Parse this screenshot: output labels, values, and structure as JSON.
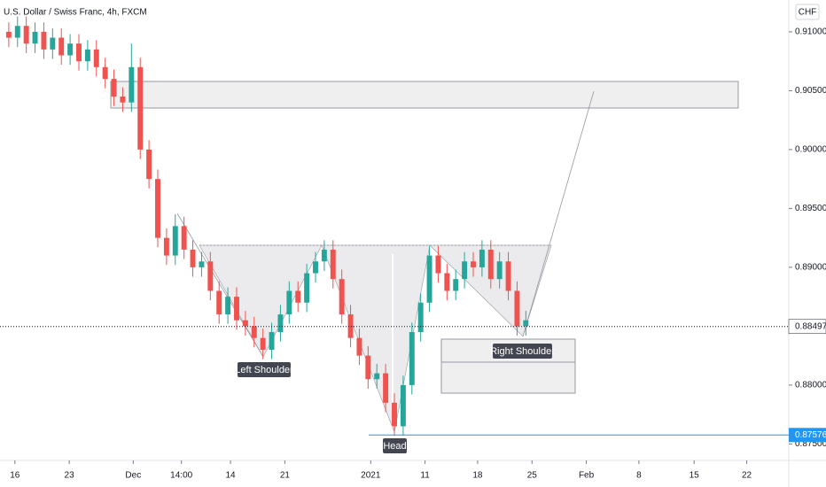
{
  "chart_data": {
    "type": "candlestick",
    "title": "U.S. Dollar / Swiss Franc, 4h, FXCM",
    "currency": "CHF",
    "up_color": "#26a69a",
    "down_color": "#ef5350",
    "xlim": [
      0,
      90
    ],
    "ylim": [
      0.8736,
      0.9127
    ],
    "xticks": [
      {
        "value": 1.7,
        "label": "16"
      },
      {
        "value": 7.9,
        "label": "23"
      },
      {
        "value": 15.2,
        "label": "Dec"
      },
      {
        "value": 20.7,
        "label": "14:00"
      },
      {
        "value": 26.3,
        "label": "14"
      },
      {
        "value": 32.5,
        "label": "21"
      },
      {
        "value": 42.3,
        "label": "2021"
      },
      {
        "value": 48.5,
        "label": "11"
      },
      {
        "value": 54.5,
        "label": "18"
      },
      {
        "value": 60.7,
        "label": "25"
      },
      {
        "value": 66.9,
        "label": "Feb"
      },
      {
        "value": 72.9,
        "label": "8"
      },
      {
        "value": 79.2,
        "label": "15"
      },
      {
        "value": 85.2,
        "label": "22"
      }
    ],
    "yticks": [
      {
        "value": 0.91,
        "label": "0.91000"
      },
      {
        "value": 0.905,
        "label": "0.90500"
      },
      {
        "value": 0.9,
        "label": "0.90000"
      },
      {
        "value": 0.895,
        "label": "0.89500"
      },
      {
        "value": 0.89,
        "label": "0.89000"
      },
      {
        "value": 0.88,
        "label": "0.88000"
      },
      {
        "value": 0.875,
        "label": "0.87500"
      }
    ],
    "price_lines": [
      {
        "value": 0.88497,
        "color": "#131722",
        "style": "dotted"
      },
      {
        "value": 0.87576,
        "color": "#2196f3",
        "style": "solid"
      }
    ],
    "annotations": [
      "Left Shoulder",
      "Head",
      "Right Shoulder"
    ],
    "x": [
      1,
      2,
      3,
      4,
      5,
      6,
      7,
      8,
      9,
      10,
      11,
      12,
      13,
      14,
      15,
      16,
      17,
      18,
      19,
      20,
      21,
      22,
      23,
      24,
      25,
      26,
      27,
      28,
      29,
      30,
      31,
      32,
      33,
      34,
      35,
      36,
      37,
      38,
      39,
      40,
      41,
      42,
      43,
      44,
      45,
      46,
      47,
      48,
      49,
      50,
      51,
      52,
      53,
      54,
      55,
      56,
      57,
      58,
      59,
      60
    ],
    "open": [
      0.91,
      0.9095,
      0.9105,
      0.909,
      0.91,
      0.9085,
      0.9095,
      0.908,
      0.909,
      0.9075,
      0.9085,
      0.907,
      0.906,
      0.9045,
      0.904,
      0.907,
      0.9,
      0.8975,
      0.8925,
      0.891,
      0.8935,
      0.8915,
      0.89,
      0.8905,
      0.888,
      0.886,
      0.8875,
      0.8855,
      0.885,
      0.884,
      0.883,
      0.8845,
      0.886,
      0.888,
      0.887,
      0.8895,
      0.8905,
      0.8915,
      0.889,
      0.886,
      0.884,
      0.8825,
      0.8805,
      0.881,
      0.8785,
      0.8765,
      0.88,
      0.8845,
      0.887,
      0.891,
      0.8895,
      0.888,
      0.889,
      0.8905,
      0.89,
      0.8915,
      0.889,
      0.8905,
      0.888,
      0.885
    ],
    "high": [
      0.9108,
      0.9113,
      0.9113,
      0.9108,
      0.9108,
      0.9103,
      0.9103,
      0.9098,
      0.9098,
      0.9093,
      0.9093,
      0.9078,
      0.9068,
      0.9053,
      0.909,
      0.9078,
      0.9008,
      0.8983,
      0.8933,
      0.8945,
      0.8943,
      0.8923,
      0.8913,
      0.8913,
      0.8888,
      0.8883,
      0.8883,
      0.8863,
      0.8858,
      0.8848,
      0.8853,
      0.8868,
      0.8888,
      0.8888,
      0.8903,
      0.8913,
      0.8923,
      0.8923,
      0.8898,
      0.8868,
      0.8848,
      0.8833,
      0.8818,
      0.8818,
      0.8793,
      0.8808,
      0.8853,
      0.8878,
      0.8918,
      0.8918,
      0.8903,
      0.8898,
      0.8913,
      0.8913,
      0.8923,
      0.8923,
      0.8913,
      0.8913,
      0.8888,
      0.8863
    ],
    "low": [
      0.9087,
      0.9087,
      0.9082,
      0.9082,
      0.9077,
      0.9077,
      0.9072,
      0.9072,
      0.9067,
      0.9067,
      0.9062,
      0.9052,
      0.9037,
      0.9032,
      0.9032,
      0.8992,
      0.8967,
      0.8917,
      0.8902,
      0.8902,
      0.8907,
      0.8892,
      0.8892,
      0.8872,
      0.8852,
      0.8852,
      0.8847,
      0.8842,
      0.8832,
      0.8822,
      0.8822,
      0.8837,
      0.8852,
      0.8862,
      0.8862,
      0.8887,
      0.8897,
      0.8882,
      0.8852,
      0.8832,
      0.8817,
      0.8797,
      0.8797,
      0.8777,
      0.8757,
      0.8757,
      0.8792,
      0.8837,
      0.8862,
      0.8887,
      0.8872,
      0.8872,
      0.8882,
      0.8892,
      0.8892,
      0.8882,
      0.8882,
      0.8872,
      0.8842,
      0.8842
    ],
    "close": [
      0.9095,
      0.9105,
      0.909,
      0.91,
      0.9085,
      0.9095,
      0.908,
      0.909,
      0.9075,
      0.9085,
      0.907,
      0.906,
      0.9045,
      0.904,
      0.907,
      0.9,
      0.8975,
      0.8925,
      0.891,
      0.8935,
      0.8915,
      0.89,
      0.8905,
      0.888,
      0.886,
      0.8875,
      0.8855,
      0.885,
      0.884,
      0.883,
      0.8845,
      0.886,
      0.888,
      0.887,
      0.8895,
      0.8905,
      0.8915,
      0.889,
      0.886,
      0.884,
      0.8825,
      0.8805,
      0.881,
      0.8785,
      0.8765,
      0.88,
      0.8845,
      0.887,
      0.891,
      0.8895,
      0.888,
      0.889,
      0.8905,
      0.89,
      0.8915,
      0.889,
      0.8905,
      0.888,
      0.885,
      0.8855
    ]
  }
}
